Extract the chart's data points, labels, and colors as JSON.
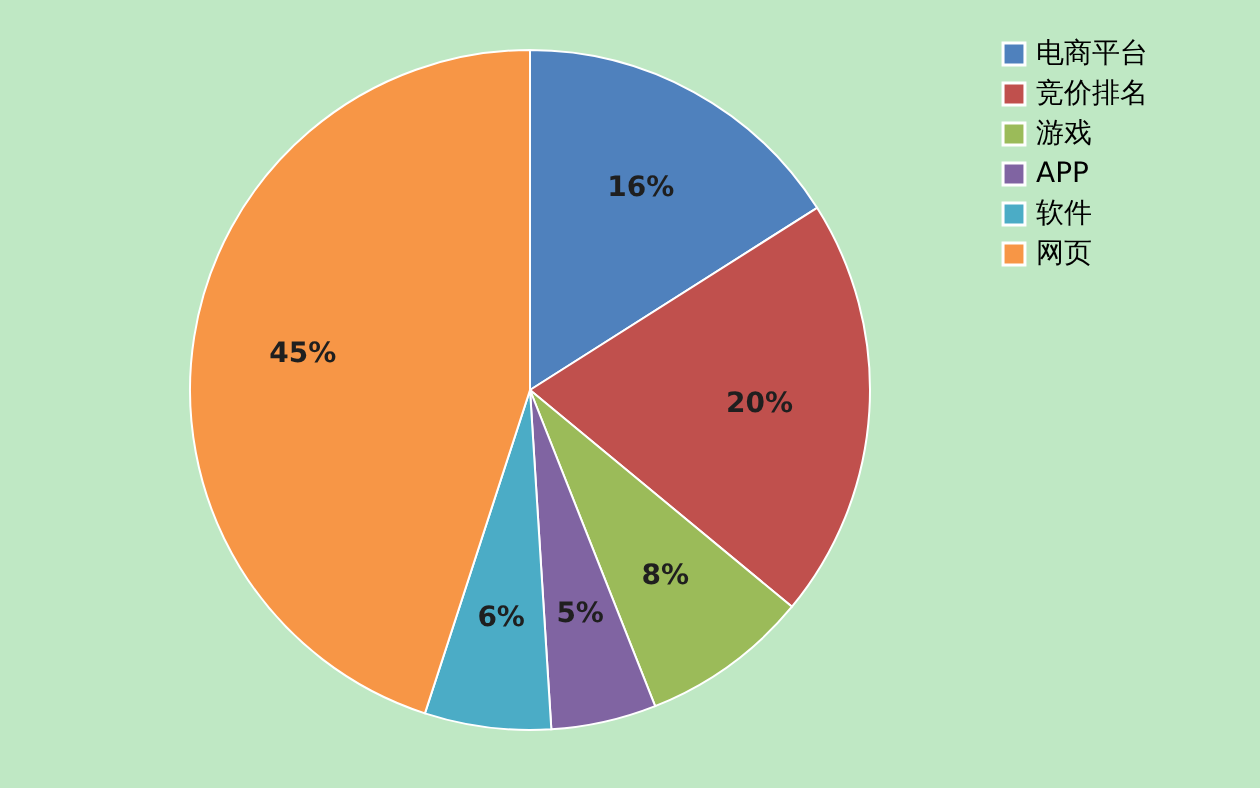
{
  "chart_data": {
    "type": "pie",
    "categories": [
      "电商平台",
      "竞价排名",
      "游戏",
      "APP",
      "软件",
      "网页"
    ],
    "values": [
      16,
      20,
      8,
      5,
      6,
      45
    ],
    "colors": [
      "#4f81bd",
      "#c0504d",
      "#9bbb59",
      "#8064a2",
      "#4bacc6",
      "#f79646"
    ],
    "value_labels": [
      "16%",
      "20%",
      "8%",
      "5%",
      "6%",
      "45%"
    ],
    "legend": "right"
  }
}
